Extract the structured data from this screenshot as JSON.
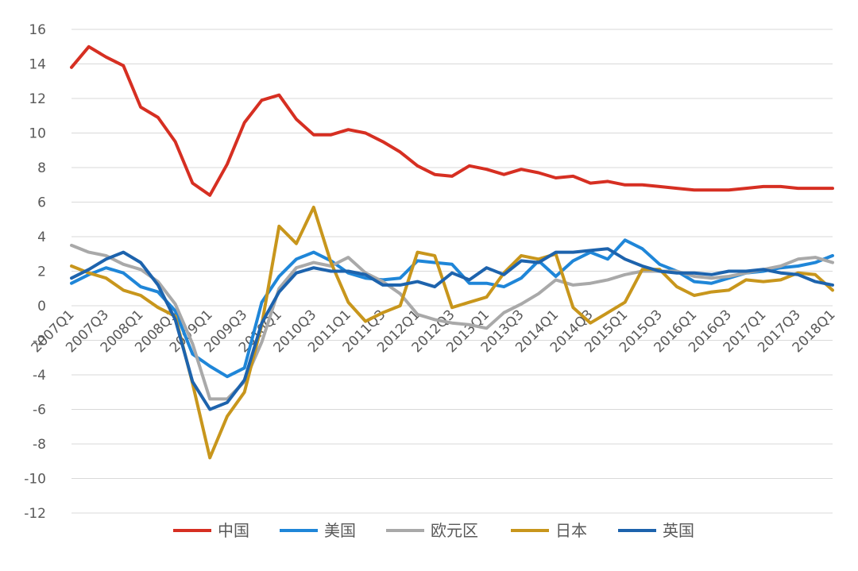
{
  "chart_data": {
    "type": "line",
    "title": "",
    "xlabel": "",
    "ylabel": "",
    "ylim": [
      -12,
      16
    ],
    "yticks": [
      16,
      14,
      12,
      10,
      8,
      6,
      4,
      2,
      0,
      -2,
      -4,
      -6,
      -8,
      -10,
      -12
    ],
    "grid": true,
    "legend_position": "bottom",
    "x": [
      "2007Q1",
      "2007Q2",
      "2007Q3",
      "2007Q4",
      "2008Q1",
      "2008Q2",
      "2008Q3",
      "2008Q4",
      "2009Q1",
      "2009Q2",
      "2009Q3",
      "2009Q4",
      "2010Q1",
      "2010Q2",
      "2010Q3",
      "2010Q4",
      "2011Q1",
      "2011Q2",
      "2011Q3",
      "2011Q4",
      "2012Q1",
      "2012Q2",
      "2012Q3",
      "2012Q4",
      "2013Q1",
      "2013Q2",
      "2013Q3",
      "2013Q4",
      "2014Q1",
      "2014Q2",
      "2014Q3",
      "2014Q4",
      "2015Q1",
      "2015Q2",
      "2015Q3",
      "2015Q4",
      "2016Q1",
      "2016Q2",
      "2016Q3",
      "2016Q4",
      "2017Q1",
      "2017Q2",
      "2017Q3",
      "2017Q4",
      "2018Q1"
    ],
    "xtick_labels": [
      "2007Q1",
      "2007Q3",
      "2008Q1",
      "2008Q3",
      "2009Q1",
      "2009Q3",
      "2010Q1",
      "2010Q3",
      "2011Q1",
      "2011Q3",
      "2012Q1",
      "2012Q3",
      "2013Q1",
      "2013Q3",
      "2014Q1",
      "2014Q3",
      "2015Q1",
      "2015Q3",
      "2016Q1",
      "2016Q3",
      "2017Q1",
      "2017Q3",
      "2018Q1"
    ],
    "series": [
      {
        "name": "中国",
        "color": "#d62f22",
        "values": [
          13.8,
          15.0,
          14.4,
          13.9,
          11.5,
          10.9,
          9.5,
          7.1,
          6.4,
          8.2,
          10.6,
          11.9,
          12.2,
          10.8,
          9.9,
          9.9,
          10.2,
          10.0,
          9.5,
          8.9,
          8.1,
          7.6,
          7.5,
          8.1,
          7.9,
          7.6,
          7.9,
          7.7,
          7.4,
          7.5,
          7.1,
          7.2,
          7.0,
          7.0,
          6.9,
          6.8,
          6.7,
          6.7,
          6.7,
          6.8,
          6.9,
          6.9,
          6.8,
          6.8,
          6.8
        ]
      },
      {
        "name": "美国",
        "color": "#1f86d8",
        "values": [
          1.3,
          1.8,
          2.2,
          1.9,
          1.1,
          0.8,
          -0.3,
          -2.8,
          -3.5,
          -4.1,
          -3.6,
          0.2,
          1.7,
          2.7,
          3.1,
          2.6,
          1.9,
          1.6,
          1.5,
          1.6,
          2.6,
          2.5,
          2.4,
          1.3,
          1.3,
          1.1,
          1.6,
          2.6,
          1.7,
          2.6,
          3.1,
          2.7,
          3.8,
          3.3,
          2.4,
          2.0,
          1.4,
          1.3,
          1.6,
          1.9,
          2.0,
          2.2,
          2.3,
          2.5,
          2.9
        ]
      },
      {
        "name": "欧元区",
        "color": "#a9a9a9",
        "values": [
          3.5,
          3.1,
          2.9,
          2.4,
          2.1,
          1.4,
          0.1,
          -2.2,
          -5.4,
          -5.4,
          -4.4,
          -2.1,
          1.0,
          2.2,
          2.5,
          2.3,
          2.8,
          1.9,
          1.4,
          0.7,
          -0.5,
          -0.8,
          -1.0,
          -1.1,
          -1.3,
          -0.4,
          0.1,
          0.7,
          1.5,
          1.2,
          1.3,
          1.5,
          1.8,
          2.0,
          2.0,
          2.0,
          1.7,
          1.6,
          1.7,
          1.9,
          2.1,
          2.3,
          2.7,
          2.8,
          2.5
        ]
      },
      {
        "name": "日本",
        "color": "#c8961c",
        "values": [
          2.3,
          1.9,
          1.6,
          0.9,
          0.6,
          -0.1,
          -0.6,
          -4.5,
          -8.8,
          -6.4,
          -5.0,
          -1.1,
          4.6,
          3.6,
          5.7,
          2.5,
          0.2,
          -0.9,
          -0.4,
          0.0,
          3.1,
          2.9,
          -0.1,
          0.2,
          0.5,
          1.9,
          2.9,
          2.7,
          3.0,
          -0.1,
          -1.0,
          -0.4,
          0.2,
          2.1,
          2.1,
          1.1,
          0.6,
          0.8,
          0.9,
          1.5,
          1.4,
          1.5,
          1.9,
          1.8,
          0.9
        ]
      },
      {
        "name": "英国",
        "color": "#1d63ad",
        "values": [
          1.6,
          2.1,
          2.7,
          3.1,
          2.5,
          1.2,
          -0.8,
          -4.4,
          -6.0,
          -5.6,
          -4.3,
          -1.0,
          0.8,
          1.9,
          2.2,
          2.0,
          2.0,
          1.8,
          1.2,
          1.2,
          1.4,
          1.1,
          1.9,
          1.5,
          2.2,
          1.8,
          2.6,
          2.5,
          3.1,
          3.1,
          3.2,
          3.3,
          2.7,
          2.3,
          2.0,
          1.9,
          1.9,
          1.8,
          2.0,
          2.0,
          2.1,
          1.9,
          1.8,
          1.4,
          1.2
        ]
      }
    ]
  }
}
